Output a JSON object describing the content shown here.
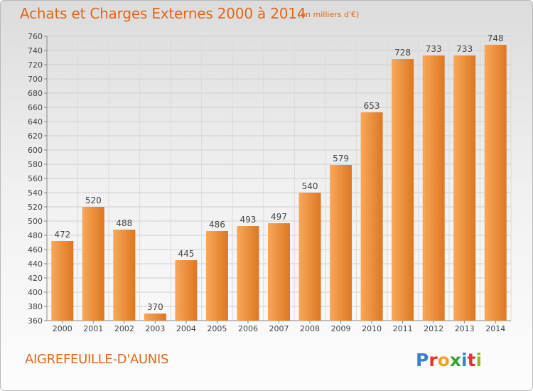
{
  "title": "Achats et Charges Externes 2000 à 2014",
  "unit_note": "(en milliers d'€)",
  "commune": "AIGREFEUILLE-D'AUNIS",
  "logo": {
    "letters": [
      "P",
      "r",
      "o",
      "x",
      "i",
      "t",
      "i"
    ],
    "colors": [
      "#3a7fc9",
      "#e3342f",
      "#f3a21b",
      "#3aa23a",
      "#3a7fc9",
      "#e3342f",
      "#8bbd2a"
    ]
  },
  "colors": {
    "accent": "#e0661a",
    "bar_light": "#f8a85a",
    "bar_dark": "#dd7722"
  },
  "chart_data": {
    "type": "bar",
    "categories": [
      "2000",
      "2001",
      "2002",
      "2003",
      "2004",
      "2005",
      "2006",
      "2007",
      "2008",
      "2009",
      "2010",
      "2011",
      "2012",
      "2013",
      "2014"
    ],
    "values": [
      472,
      520,
      488,
      370,
      445,
      486,
      493,
      497,
      540,
      579,
      653,
      728,
      733,
      733,
      748
    ],
    "ylim": [
      360,
      760
    ],
    "yticks": [
      360,
      380,
      400,
      420,
      440,
      460,
      480,
      500,
      520,
      540,
      560,
      580,
      600,
      620,
      640,
      660,
      680,
      700,
      720,
      740,
      760
    ],
    "grid": true,
    "xlabel": "",
    "ylabel": ""
  }
}
